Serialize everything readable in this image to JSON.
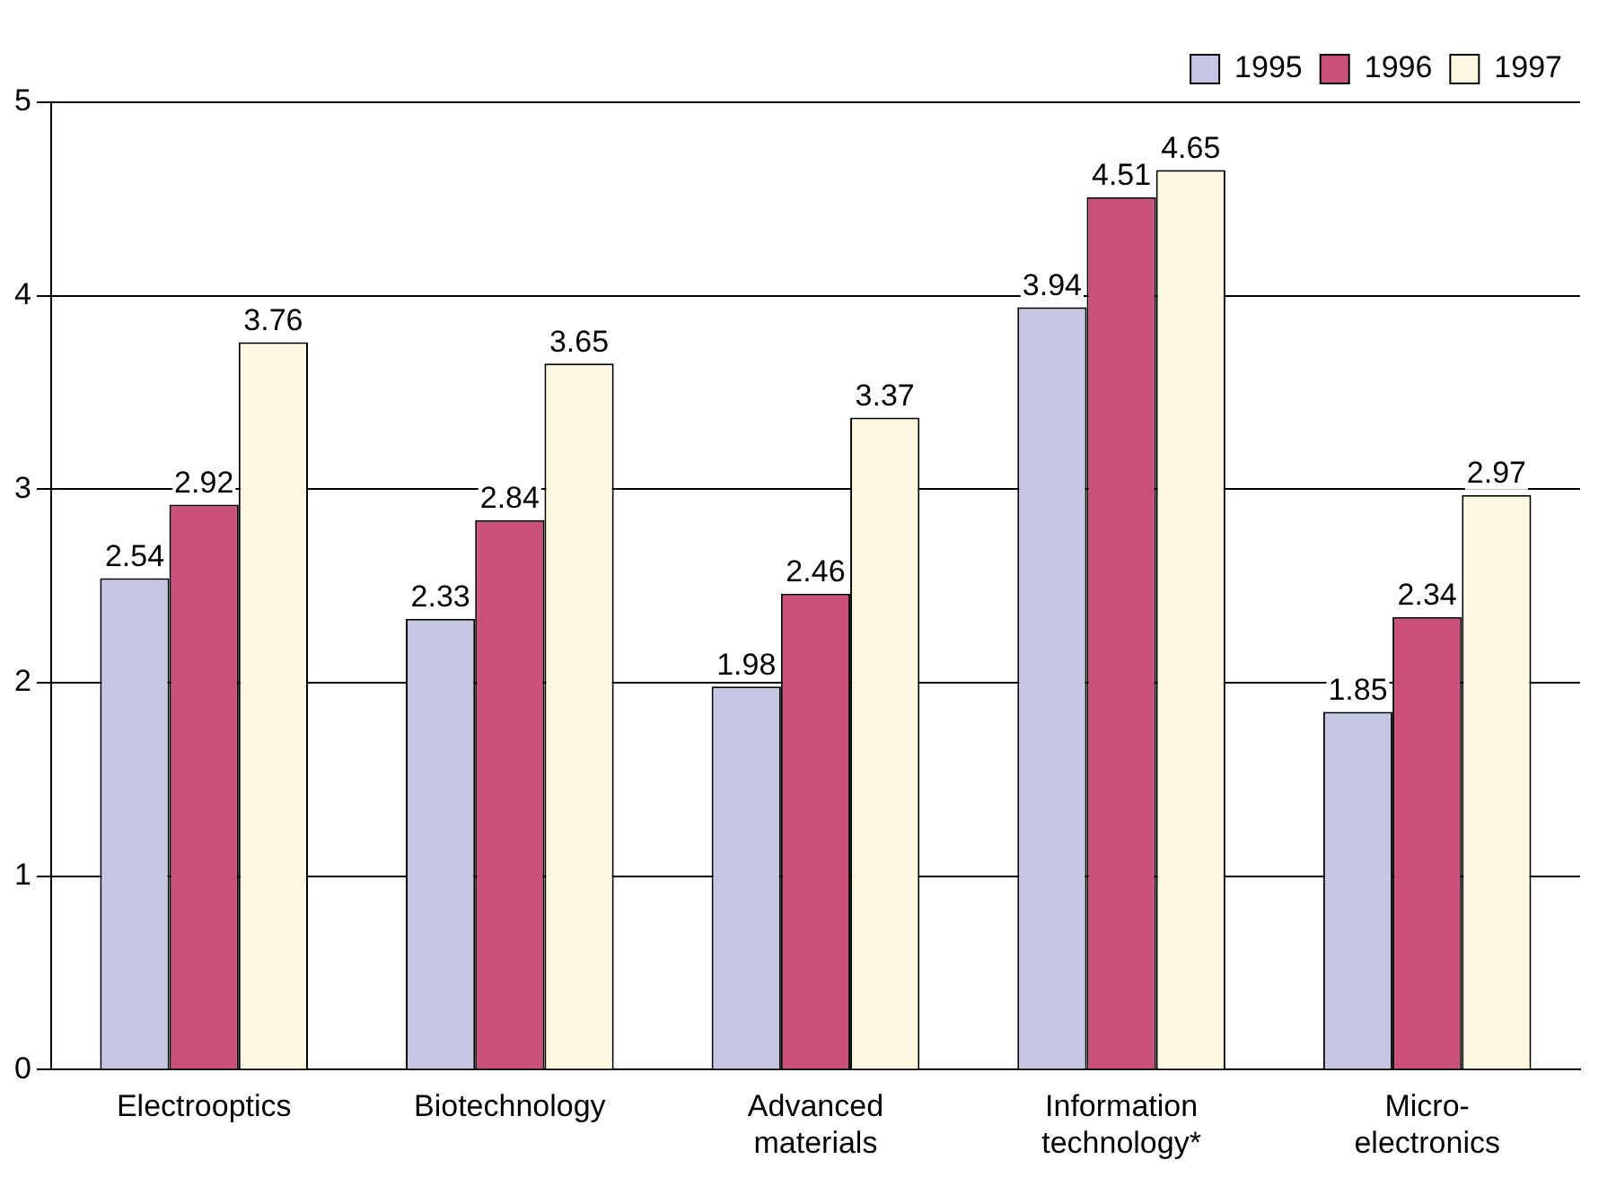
{
  "chart_data": {
    "type": "bar",
    "categories": [
      "Electrooptics",
      "Biotechnology",
      "Advanced materials",
      "Information technology*",
      "Micro-electronics"
    ],
    "series": [
      {
        "name": "1995",
        "color": "#c5c6e2",
        "values": [
          2.54,
          2.33,
          1.98,
          3.94,
          1.85
        ]
      },
      {
        "name": "1996",
        "color": "#c8507a",
        "values": [
          2.92,
          2.84,
          2.46,
          4.51,
          2.34
        ]
      },
      {
        "name": "1997",
        "color": "#fdf9e0",
        "values": [
          3.76,
          3.65,
          3.37,
          4.65,
          2.97
        ]
      }
    ],
    "ylim": [
      0,
      5
    ],
    "yticks": [
      0,
      1,
      2,
      3,
      4,
      5
    ],
    "grid": "y",
    "legend": "top right",
    "data_labels": true
  }
}
